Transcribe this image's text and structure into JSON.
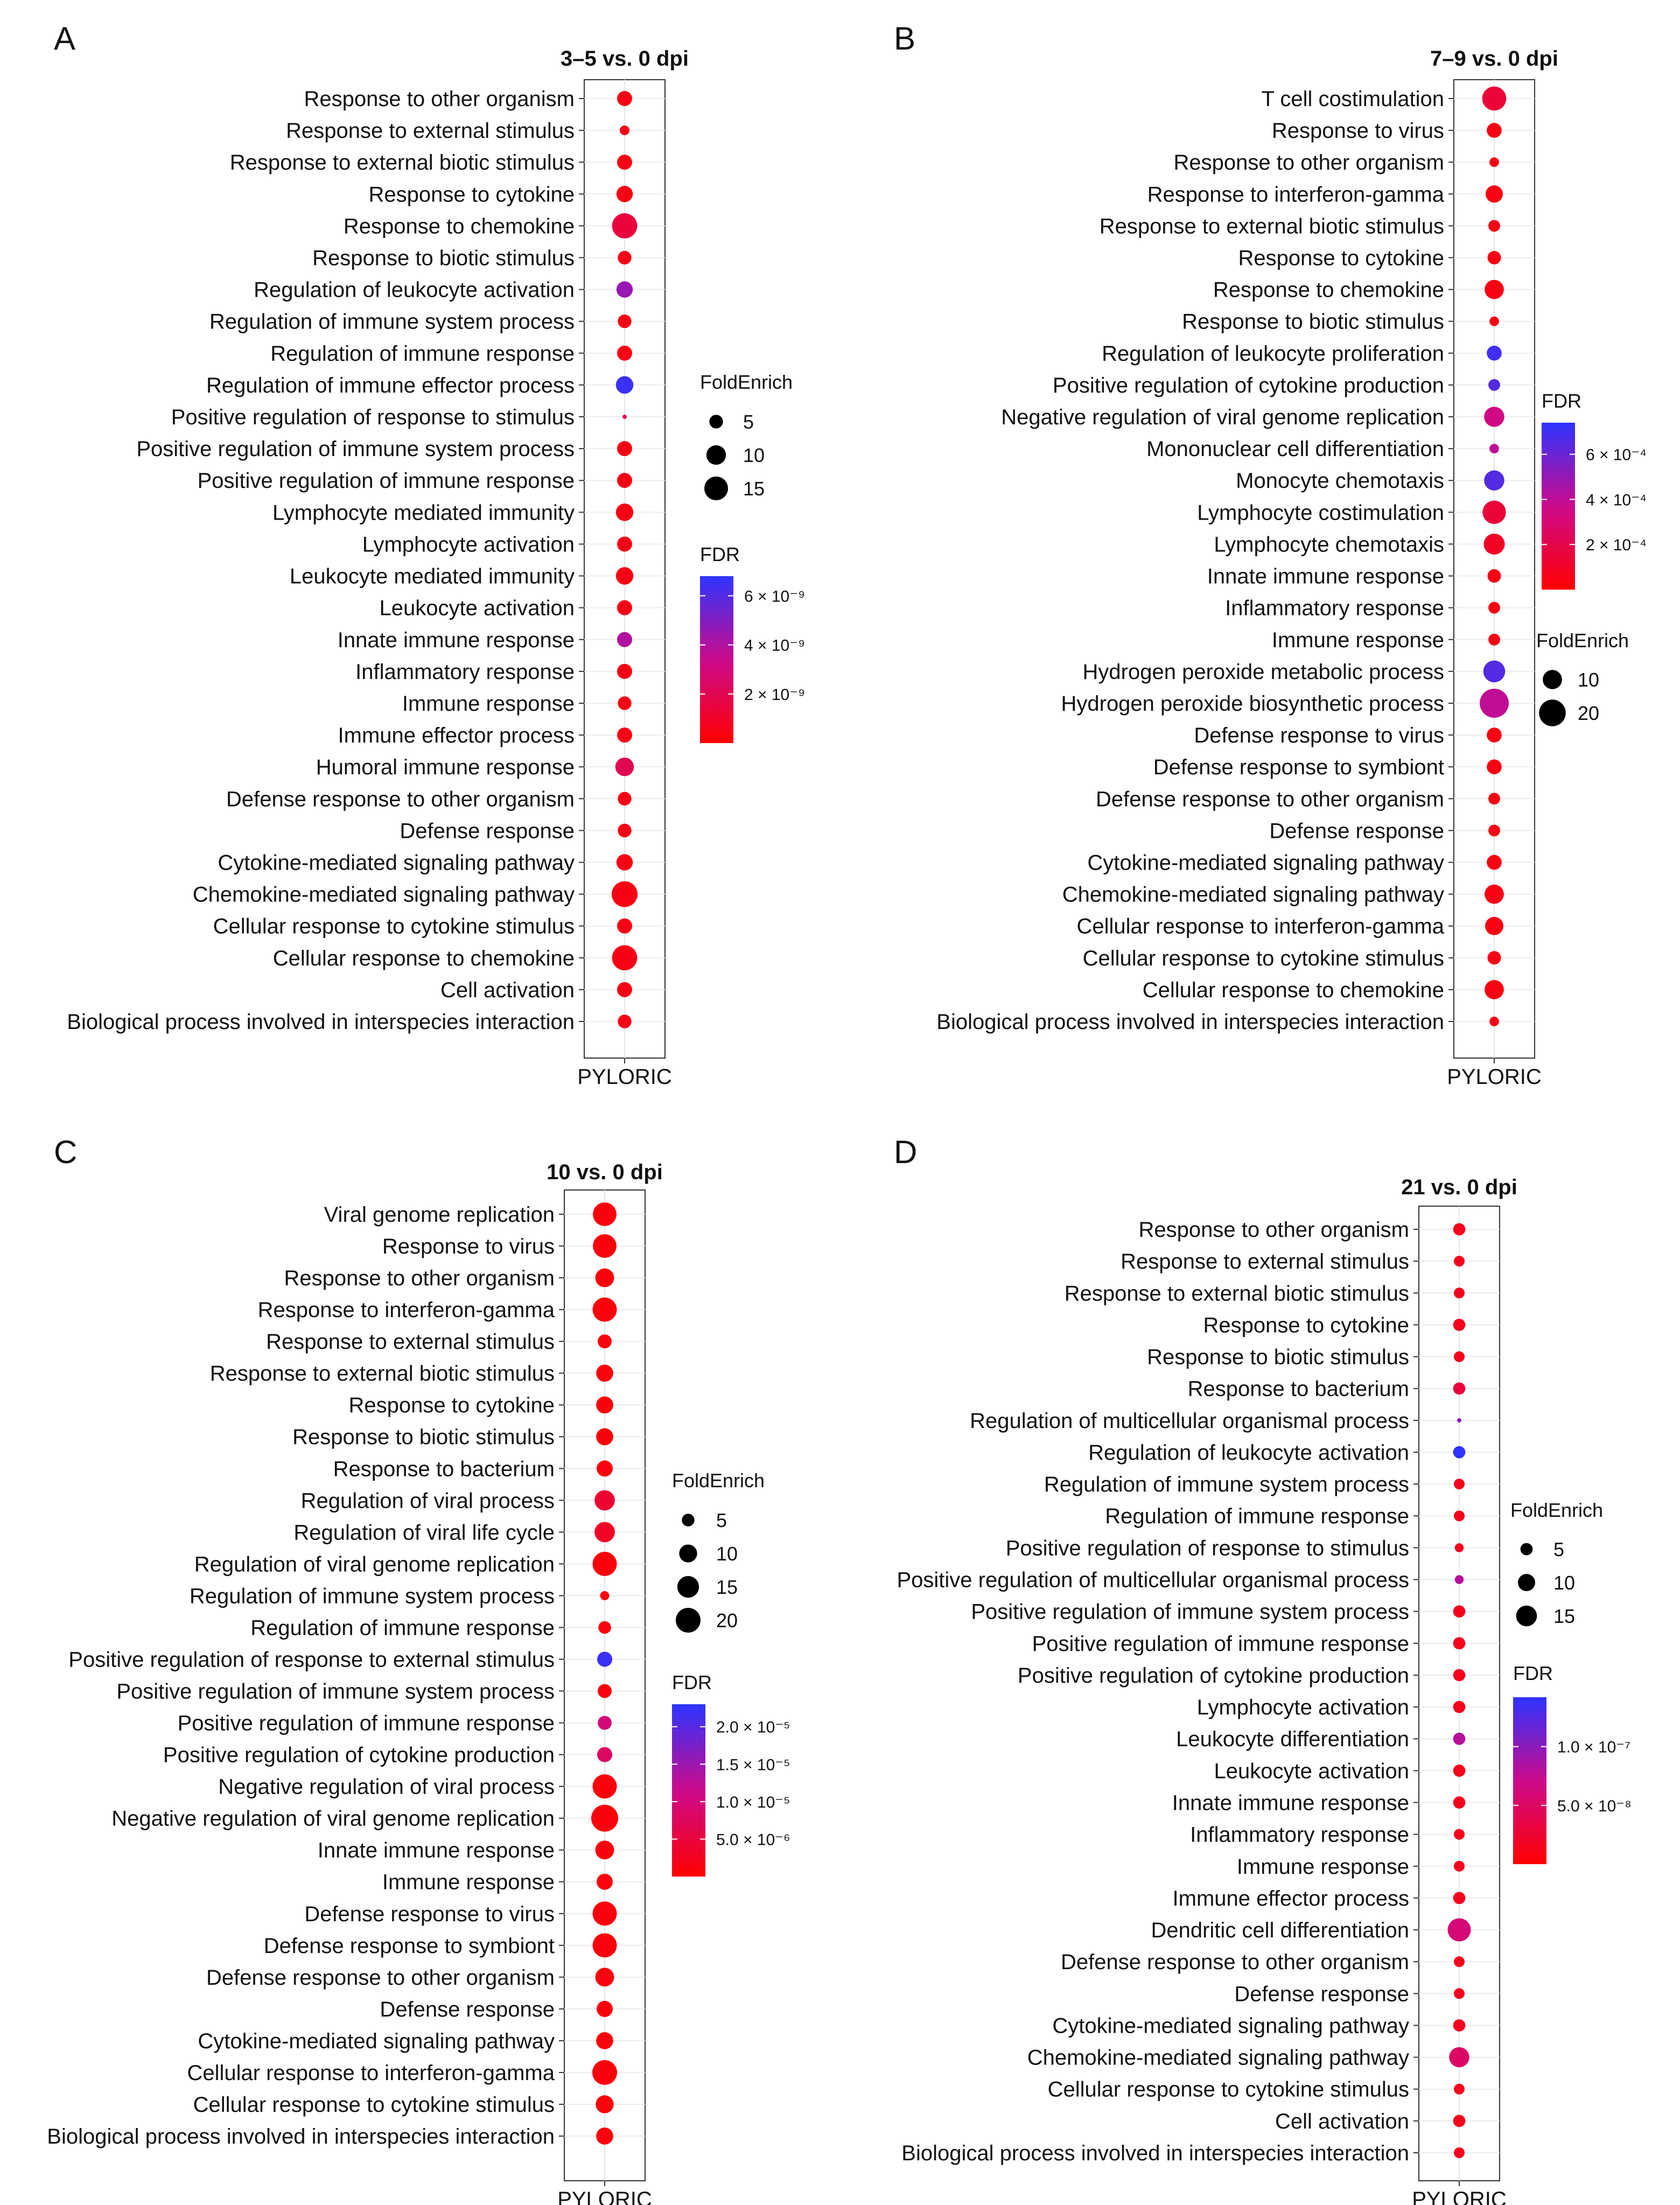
{
  "figure_labels": [
    "A",
    "B",
    "C",
    "D"
  ],
  "chart_data": [
    {
      "type": "scatter",
      "panel_label": "A",
      "title": "3–5 vs. 0 dpi",
      "x_label": "PYLORIC",
      "size_legend_title": "FoldEnrich",
      "size_legend_values": [
        5,
        10,
        15
      ],
      "size_range": [
        2,
        18
      ],
      "color_legend_title": "FDR",
      "color_range": [
        0,
        6.8e-09
      ],
      "color_ticks": [
        {
          "value": 2e-09,
          "label": "2 × 10⁻⁹"
        },
        {
          "value": 4e-09,
          "label": "4 × 10⁻⁹"
        },
        {
          "value": 6e-09,
          "label": "6 × 10⁻⁹"
        }
      ],
      "categories": [
        "Response to other organism",
        "Response to external stimulus",
        "Response to external biotic stimulus",
        "Response to cytokine",
        "Response to chemokine",
        "Response to biotic stimulus",
        "Regulation of leukocyte activation",
        "Regulation of immune system process",
        "Regulation of immune response",
        "Regulation of immune effector process",
        "Positive regulation of response to stimulus",
        "Positive regulation of immune system process",
        "Positive regulation of immune response",
        "Lymphocyte mediated immunity",
        "Lymphocyte activation",
        "Leukocyte mediated immunity",
        "Leukocyte activation",
        "Innate immune response",
        "Inflammatory response",
        "Immune response",
        "Immune effector process",
        "Humoral immune response",
        "Defense response to other organism",
        "Defense response",
        "Cytokine-mediated signaling pathway",
        "Chemokine-mediated signaling pathway",
        "Cellular response to cytokine stimulus",
        "Cellular response to chemokine",
        "Cell activation",
        "Biological process involved in interspecies interaction"
      ],
      "fold_enrichment": [
        6,
        3,
        6,
        7,
        17,
        5,
        7,
        5,
        6,
        8,
        2,
        6,
        6,
        8,
        6,
        8,
        6,
        6,
        6,
        5,
        6,
        9,
        5,
        5,
        7,
        18,
        6,
        17,
        6,
        5
      ],
      "fdr": [
        5e-10,
        5e-10,
        5e-10,
        5e-10,
        1.5e-09,
        5e-10,
        4.5e-09,
        5e-10,
        5e-10,
        6.5e-09,
        2e-09,
        5e-10,
        5e-10,
        5e-10,
        5e-10,
        5e-10,
        5e-10,
        4e-09,
        5e-10,
        5e-10,
        5e-10,
        2e-09,
        5e-10,
        5e-10,
        5e-10,
        5e-10,
        5e-10,
        5e-10,
        5e-10,
        5e-10
      ]
    },
    {
      "type": "scatter",
      "panel_label": "B",
      "title": "7–9 vs. 0 dpi",
      "x_label": "PYLORIC",
      "size_legend_title": "FoldEnrich",
      "size_legend_values": [
        10,
        20
      ],
      "size_range": [
        2,
        24
      ],
      "color_legend_title": "FDR",
      "color_range": [
        0,
        0.00074
      ],
      "color_ticks": [
        {
          "value": 0.0002,
          "label": "2 × 10⁻⁴"
        },
        {
          "value": 0.0004,
          "label": "4 × 10⁻⁴"
        },
        {
          "value": 0.0006,
          "label": "6 × 10⁻⁴"
        }
      ],
      "categories": [
        "T cell costimulation",
        "Response to virus",
        "Response to other organism",
        "Response to interferon-gamma",
        "Response to external biotic stimulus",
        "Response to cytokine",
        "Response to chemokine",
        "Response to biotic stimulus",
        "Regulation of leukocyte proliferation",
        "Positive regulation of cytokine production",
        "Negative regulation of viral genome replication",
        "Mononuclear cell differentiation",
        "Monocyte chemotaxis",
        "Lymphocyte costimulation",
        "Lymphocyte chemotaxis",
        "Innate immune response",
        "Inflammatory response",
        "Immune response",
        "Hydrogen peroxide metabolic process",
        "Hydrogen peroxide biosynthetic process",
        "Defense response to virus",
        "Defense response to symbiont",
        "Defense response to other organism",
        "Defense response",
        "Cytokine-mediated signaling pathway",
        "Chemokine-mediated signaling pathway",
        "Cellular response to interferon-gamma",
        "Cellular response to cytokine stimulus",
        "Cellular response to chemokine",
        "Biological process involved in interspecies interaction"
      ],
      "fold_enrichment": [
        16,
        6,
        3,
        8,
        4,
        5,
        10,
        3,
        6,
        4,
        11,
        3,
        11,
        15,
        12,
        5,
        4,
        4,
        13,
        24,
        6,
        6,
        4,
        4,
        6,
        10,
        9,
        5,
        10,
        3
      ],
      "fdr": [
        0.00015,
        5e-05,
        5e-05,
        5e-05,
        5e-05,
        5e-05,
        5e-05,
        5e-05,
        0.0007,
        0.00065,
        0.00035,
        0.0004,
        0.00065,
        0.00015,
        0.0001,
        5e-05,
        5e-05,
        5e-05,
        0.00065,
        0.0004,
        5e-05,
        5e-05,
        5e-05,
        5e-05,
        5e-05,
        5e-05,
        5e-05,
        5e-05,
        5e-05,
        5e-05
      ]
    },
    {
      "type": "scatter",
      "panel_label": "C",
      "title": "10 vs. 0 dpi",
      "x_label": "PYLORIC",
      "size_legend_title": "FoldEnrich",
      "size_legend_values": [
        5,
        10,
        15,
        20
      ],
      "size_range": [
        2,
        24
      ],
      "color_legend_title": "FDR",
      "color_range": [
        0,
        2.3e-05
      ],
      "color_ticks": [
        {
          "value": 5e-06,
          "label": "5.0 × 10⁻⁶"
        },
        {
          "value": 1e-05,
          "label": "1.0 × 10⁻⁵"
        },
        {
          "value": 1.5e-05,
          "label": "1.5 × 10⁻⁵"
        },
        {
          "value": 2e-05,
          "label": "2.0 × 10⁻⁵"
        }
      ],
      "categories": [
        "Viral genome replication",
        "Response to virus",
        "Response to other organism",
        "Response to interferon-gamma",
        "Response to external stimulus",
        "Response to external biotic stimulus",
        "Response to cytokine",
        "Response to biotic stimulus",
        "Response to bacterium",
        "Regulation of viral process",
        "Regulation of viral life cycle",
        "Regulation of viral genome replication",
        "Regulation of immune system process",
        "Regulation of immune response",
        "Positive regulation of response to external stimulus",
        "Positive regulation of immune system process",
        "Positive regulation of immune response",
        "Positive regulation of cytokine production",
        "Negative regulation of viral process",
        "Negative regulation of viral genome replication",
        "Innate immune response",
        "Immune response",
        "Defense response to virus",
        "Defense response to symbiont",
        "Defense response to other organism",
        "Defense response",
        "Cytokine-mediated signaling pathway",
        "Cellular response to interferon-gamma",
        "Cellular response to cytokine stimulus",
        "Biological process involved in interspecies interaction"
      ],
      "fold_enrichment": [
        18,
        18,
        11,
        19,
        6,
        9,
        9,
        9,
        8,
        13,
        13,
        19,
        3,
        5,
        7,
        6,
        6,
        7,
        19,
        24,
        11,
        8,
        19,
        19,
        11,
        8,
        9,
        20,
        10,
        9
      ],
      "fdr": [
        1e-06,
        1e-06,
        1e-06,
        1e-06,
        1e-06,
        1e-06,
        1e-06,
        1e-06,
        1e-06,
        4e-06,
        3e-06,
        1e-06,
        1e-06,
        1e-06,
        2.2e-05,
        1e-06,
        1e-05,
        8e-06,
        1e-06,
        1e-06,
        1e-06,
        1e-06,
        1e-06,
        1e-06,
        1e-06,
        1e-06,
        1e-06,
        1e-06,
        1e-06,
        1e-06
      ]
    },
    {
      "type": "scatter",
      "panel_label": "D",
      "title": "21 vs. 0 dpi",
      "x_label": "PYLORIC",
      "size_legend_title": "FoldEnrich",
      "size_legend_values": [
        5,
        10,
        15
      ],
      "size_range": [
        2,
        20
      ],
      "color_legend_title": "FDR",
      "color_range": [
        0,
        1.42e-07
      ],
      "color_ticks": [
        {
          "value": 5e-08,
          "label": "5.0 × 10⁻⁸"
        },
        {
          "value": 1e-07,
          "label": "1.0 × 10⁻⁷"
        }
      ],
      "categories": [
        "Response to other organism",
        "Response to external stimulus",
        "Response to external biotic stimulus",
        "Response to cytokine",
        "Response to biotic stimulus",
        "Response to bacterium",
        "Regulation of multicellular organismal process",
        "Regulation of leukocyte activation",
        "Regulation of immune system process",
        "Regulation of immune response",
        "Positive regulation of response to stimulus",
        "Positive regulation of multicellular organismal process",
        "Positive regulation of immune system process",
        "Positive regulation of immune response",
        "Positive regulation of cytokine production",
        "Lymphocyte activation",
        "Leukocyte differentiation",
        "Leukocyte activation",
        "Innate immune response",
        "Inflammatory response",
        "Immune response",
        "Immune effector process",
        "Dendritic cell differentiation",
        "Defense response to other organism",
        "Defense response",
        "Cytokine-mediated signaling pathway",
        "Chemokine-mediated signaling pathway",
        "Cellular response to cytokine stimulus",
        "Cell activation",
        "Biological process involved in interspecies interaction"
      ],
      "fold_enrichment": [
        5,
        4,
        4,
        5,
        4,
        5,
        2,
        5,
        4,
        4,
        3,
        3,
        5,
        5,
        5,
        5,
        5,
        5,
        5,
        4,
        4,
        5,
        19,
        4,
        4,
        5,
        14,
        4,
        5,
        4
      ],
      "fdr": [
        1.5e-08,
        1.5e-08,
        1.5e-08,
        1.5e-08,
        1.5e-08,
        3e-08,
        1e-07,
        1.42e-07,
        1.5e-08,
        1.5e-08,
        1.5e-08,
        8e-08,
        1.5e-08,
        1.5e-08,
        1.5e-08,
        1.5e-08,
        8e-08,
        1.5e-08,
        1.5e-08,
        1.5e-08,
        1.5e-08,
        1.5e-08,
        6e-08,
        1.5e-08,
        1.5e-08,
        1.5e-08,
        5e-08,
        1.5e-08,
        1.5e-08,
        1.5e-08
      ]
    }
  ]
}
